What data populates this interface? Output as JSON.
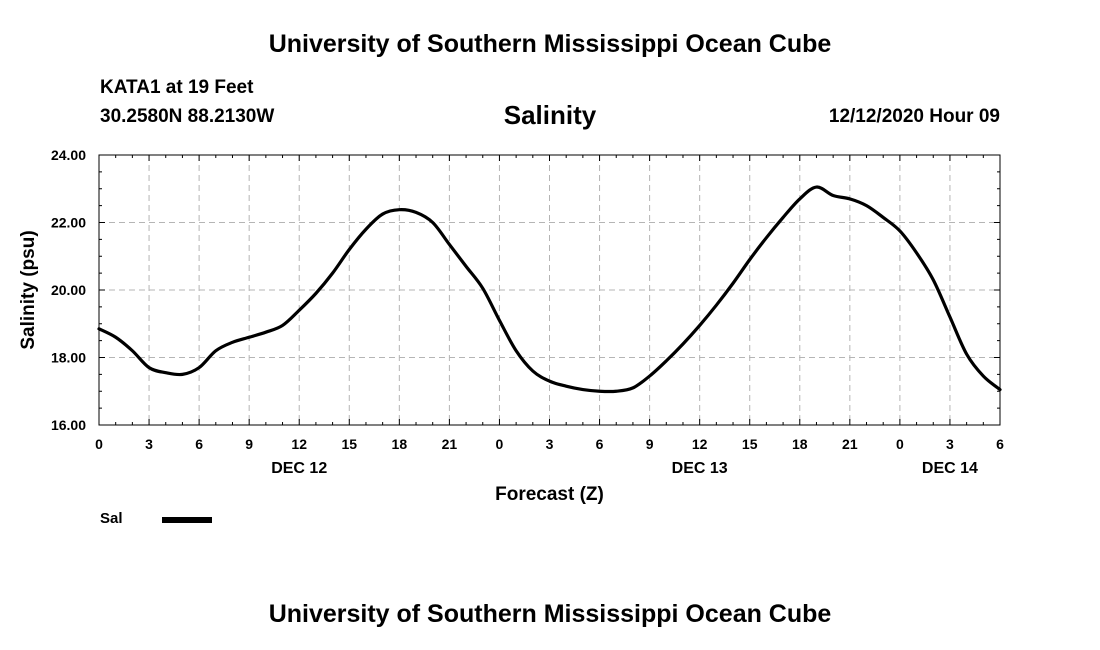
{
  "header": {
    "top_title": "University of Southern Mississippi Ocean Cube",
    "station": "KATA1 at 19 Feet",
    "coords": "30.2580N 88.2130W",
    "datetime": "12/12/2020 Hour 09",
    "bottom_title": "University of Southern Mississippi Ocean Cube"
  },
  "chart_data": {
    "type": "line",
    "title": "Salinity",
    "xlabel": "Forecast (Z)",
    "ylabel": "Salinity (psu)",
    "xlim": [
      0,
      54
    ],
    "ylim": [
      16,
      24
    ],
    "x_tick_labels": [
      "0",
      "3",
      "6",
      "9",
      "12",
      "15",
      "18",
      "21",
      "0",
      "3",
      "6",
      "9",
      "12",
      "15",
      "18",
      "21",
      "0",
      "3",
      "6"
    ],
    "day_labels": [
      {
        "label": "DEC 12",
        "hour": 12
      },
      {
        "label": "DEC 13",
        "hour": 36
      },
      {
        "label": "DEC 14",
        "hour": 51
      }
    ],
    "y_ticks": [
      16,
      18,
      20,
      22,
      24
    ],
    "y_tick_labels": [
      "16.00",
      "18.00",
      "20.00",
      "22.00",
      "24.00"
    ],
    "grid": true,
    "line_color": "#000000",
    "series": [
      {
        "name": "Sal",
        "x": [
          0,
          1,
          2,
          3,
          4,
          5,
          6,
          7,
          8,
          9,
          10,
          11,
          12,
          13,
          14,
          15,
          16,
          17,
          18,
          19,
          20,
          21,
          22,
          23,
          24,
          25,
          26,
          27,
          28,
          29,
          30,
          31,
          32,
          33,
          34,
          35,
          36,
          37,
          38,
          39,
          40,
          41,
          42,
          43,
          44,
          45,
          46,
          47,
          48,
          49,
          50,
          51,
          52,
          53,
          54
        ],
        "values": [
          18.85,
          18.6,
          18.2,
          17.7,
          17.55,
          17.5,
          17.7,
          18.2,
          18.45,
          18.6,
          18.75,
          18.95,
          19.4,
          19.9,
          20.5,
          21.2,
          21.8,
          22.25,
          22.38,
          22.3,
          22.0,
          21.35,
          20.7,
          20.05,
          19.1,
          18.2,
          17.6,
          17.3,
          17.15,
          17.05,
          17.0,
          17.0,
          17.1,
          17.45,
          17.9,
          18.4,
          18.95,
          19.55,
          20.2,
          20.9,
          21.55,
          22.15,
          22.7,
          23.05,
          22.8,
          22.7,
          22.5,
          22.15,
          21.75,
          21.1,
          20.3,
          19.2,
          18.1,
          17.45,
          17.05
        ]
      }
    ],
    "legend": [
      {
        "label": "Sal"
      }
    ],
    "legend_position": "bottom-left"
  }
}
